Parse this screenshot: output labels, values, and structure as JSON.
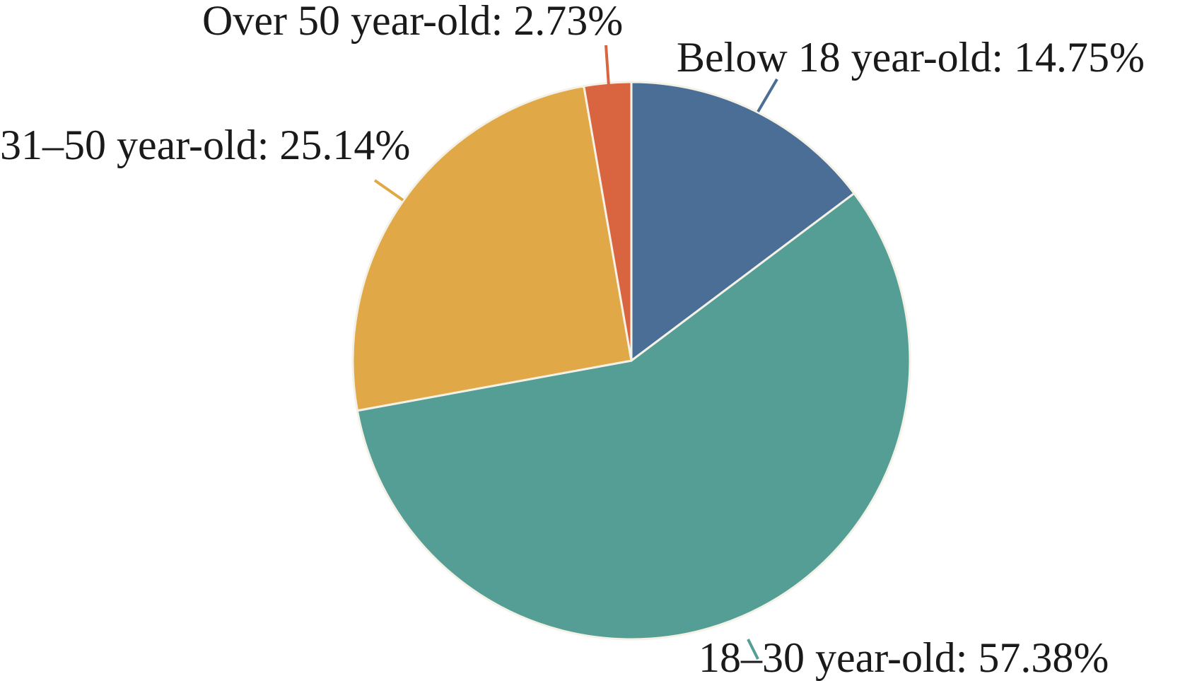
{
  "chart_data": {
    "type": "pie",
    "start_angle_deg": 0,
    "direction": "clockwise",
    "slices": [
      {
        "label": "Below 18 year-old: 14.75%",
        "category": "Below 18 year-old",
        "value": 14.75,
        "color": "#4a6e96"
      },
      {
        "label": "18–30 year-old: 57.38%",
        "category": "18–30 year-old",
        "value": 57.38,
        "color": "#549e95"
      },
      {
        "label": "31–50 year-old: 25.14%",
        "category": "31–50 year-old",
        "value": 25.14,
        "color": "#e1a848"
      },
      {
        "label": "Over 50 year-old: 2.73%",
        "category": "Over 50 year-old",
        "value": 2.73,
        "color": "#d8653f"
      }
    ]
  }
}
